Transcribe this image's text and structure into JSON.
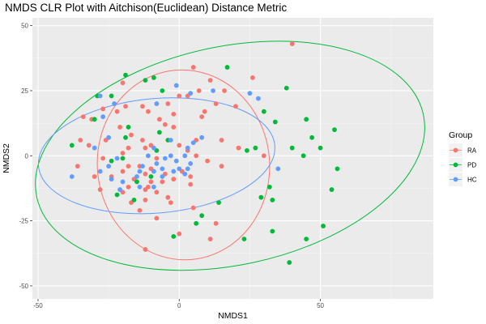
{
  "chart_data": {
    "type": "scatter",
    "title": "NMDS CLR Plot with Aitchison(Euclidean) Distance Metric",
    "xlabel": "NMDS1",
    "ylabel": "NMDS2",
    "xlim": [
      -52,
      90
    ],
    "ylim": [
      -55,
      53
    ],
    "xticks": [
      "-50",
      "0",
      "50"
    ],
    "xtick_values": [
      -50,
      0,
      50
    ],
    "yticks": [
      "-50",
      "-25",
      "0",
      "25",
      "50"
    ],
    "ytick_values": [
      -50,
      -25,
      0,
      25,
      50
    ],
    "grid": true,
    "legend_position": "right",
    "legend_title": "Group",
    "series": [
      {
        "name": "RA",
        "color": "#F8766D",
        "points": [
          [
            40,
            43
          ],
          [
            5,
            34
          ],
          [
            11,
            29
          ],
          [
            26,
            30
          ],
          [
            -20,
            28
          ],
          [
            7,
            25
          ],
          [
            16,
            25
          ],
          [
            0,
            23
          ],
          [
            3,
            23
          ],
          [
            -19,
            19
          ],
          [
            -13,
            19
          ],
          [
            -4,
            20
          ],
          [
            -22,
            17
          ],
          [
            -27,
            18
          ],
          [
            -34,
            15
          ],
          [
            -11,
            17
          ],
          [
            -2,
            16
          ],
          [
            13,
            20
          ],
          [
            20,
            19
          ],
          [
            9,
            17
          ],
          [
            -31,
            14
          ],
          [
            -7,
            14
          ],
          [
            -5,
            12
          ],
          [
            -21,
            11
          ],
          [
            8,
            15
          ],
          [
            -17,
            8
          ],
          [
            -35,
            6
          ],
          [
            -2,
            11
          ],
          [
            -13,
            6
          ],
          [
            -26,
            6
          ],
          [
            6,
            6
          ],
          [
            -10,
            4
          ],
          [
            -32,
            4
          ],
          [
            -18,
            3
          ],
          [
            -12,
            3
          ],
          [
            -20,
            1
          ],
          [
            0,
            4
          ],
          [
            3,
            2
          ],
          [
            15,
            6
          ],
          [
            21,
            3
          ],
          [
            -27,
            -1
          ],
          [
            -8,
            -1
          ],
          [
            6,
            0
          ],
          [
            10,
            -2
          ],
          [
            15,
            -4
          ],
          [
            30,
            0
          ],
          [
            -36,
            -4
          ],
          [
            -18,
            -4
          ],
          [
            -14,
            -4
          ],
          [
            -10,
            -5
          ],
          [
            -20,
            -6
          ],
          [
            -12,
            -7
          ],
          [
            -5,
            -7
          ],
          [
            1,
            -6
          ],
          [
            4,
            -8
          ],
          [
            -30,
            -8
          ],
          [
            -24,
            -8
          ],
          [
            -16,
            -9
          ],
          [
            -10,
            -10
          ],
          [
            -6,
            -10
          ],
          [
            -2,
            -9
          ],
          [
            4,
            -11
          ],
          [
            -28,
            -13
          ],
          [
            -18,
            -12
          ],
          [
            -12,
            -13
          ],
          [
            -8,
            -14
          ],
          [
            -4,
            -16
          ],
          [
            -12,
            -17
          ],
          [
            -14,
            -21
          ],
          [
            -17,
            -18
          ],
          [
            -20,
            -14
          ],
          [
            -11,
            -12
          ],
          [
            -3,
            -18
          ],
          [
            5,
            -20
          ],
          [
            13,
            -26
          ],
          [
            -8,
            -24
          ],
          [
            0,
            -30
          ],
          [
            11,
            -32
          ],
          [
            -12,
            -36
          ]
        ]
      },
      {
        "name": "PD",
        "color": "#00BA38",
        "points": [
          [
            -19,
            31
          ],
          [
            -12,
            29
          ],
          [
            -9,
            30
          ],
          [
            17,
            34
          ],
          [
            38,
            26
          ],
          [
            -24,
            23
          ],
          [
            -29,
            23
          ],
          [
            -30,
            14
          ],
          [
            -18,
            11
          ],
          [
            -6,
            25
          ],
          [
            30,
            17
          ],
          [
            34,
            13
          ],
          [
            45,
            14
          ],
          [
            55,
            10
          ],
          [
            -7,
            9
          ],
          [
            -8,
            2
          ],
          [
            -19,
            7
          ],
          [
            -4,
            6
          ],
          [
            47,
            7
          ],
          [
            27,
            3
          ],
          [
            50,
            3
          ],
          [
            -38,
            4
          ],
          [
            -20,
            -1
          ],
          [
            40,
            3
          ],
          [
            44,
            0
          ],
          [
            24,
            2
          ],
          [
            -24,
            -2
          ],
          [
            -10,
            -8
          ],
          [
            56,
            -5
          ],
          [
            -15,
            -10
          ],
          [
            -22,
            -15
          ],
          [
            -16,
            -17
          ],
          [
            54,
            -13
          ],
          [
            32,
            -12
          ],
          [
            29,
            -16
          ],
          [
            33,
            -17
          ],
          [
            8,
            -23
          ],
          [
            14,
            -18
          ],
          [
            51,
            -27
          ],
          [
            6,
            -26
          ],
          [
            -2,
            -31
          ],
          [
            33,
            -29
          ],
          [
            45,
            -32
          ],
          [
            23,
            -32
          ],
          [
            39,
            -41
          ]
        ]
      },
      {
        "name": "HC",
        "color": "#619CFF",
        "points": [
          [
            -28,
            23
          ],
          [
            -23,
            20
          ],
          [
            -27,
            15
          ],
          [
            -8,
            20
          ],
          [
            -1,
            27
          ],
          [
            4,
            24
          ],
          [
            12,
            25
          ],
          [
            25,
            24
          ],
          [
            28,
            22
          ],
          [
            -25,
            7
          ],
          [
            8,
            7
          ],
          [
            -30,
            3
          ],
          [
            -25,
            -4
          ],
          [
            -3,
            6
          ],
          [
            -9,
            3
          ],
          [
            3,
            3
          ],
          [
            5,
            5
          ],
          [
            -22,
            -1
          ],
          [
            -11,
            0
          ],
          [
            -5,
            -1
          ],
          [
            -3,
            0
          ],
          [
            -1,
            -2
          ],
          [
            2,
            0
          ],
          [
            4,
            -3
          ],
          [
            -8,
            -3
          ],
          [
            -13,
            -4
          ],
          [
            -6,
            -5
          ],
          [
            0,
            -5
          ],
          [
            3,
            -5
          ],
          [
            -28,
            -6
          ],
          [
            -14,
            -6
          ],
          [
            -9,
            -6
          ],
          [
            -6,
            -8
          ],
          [
            -2,
            -6
          ],
          [
            2,
            -7
          ],
          [
            -38,
            -8
          ],
          [
            -24,
            -9
          ],
          [
            -15,
            -8
          ],
          [
            -20,
            -10
          ],
          [
            -9,
            -12
          ],
          [
            -14,
            -12
          ],
          [
            -21,
            -13
          ],
          [
            35,
            -5
          ]
        ]
      }
    ],
    "ellipses": [
      {
        "group": "RA",
        "cx": 1.5,
        "cy": -3.5,
        "rx": 30.5,
        "ry": 36.5,
        "angle": -5
      },
      {
        "group": "PD",
        "cx": 18,
        "cy": 0,
        "rx": 70,
        "ry": 42,
        "angle": -12
      },
      {
        "group": "HC",
        "cx": -8,
        "cy": 0,
        "rx": 42,
        "ry": 22,
        "angle": -5
      }
    ]
  }
}
